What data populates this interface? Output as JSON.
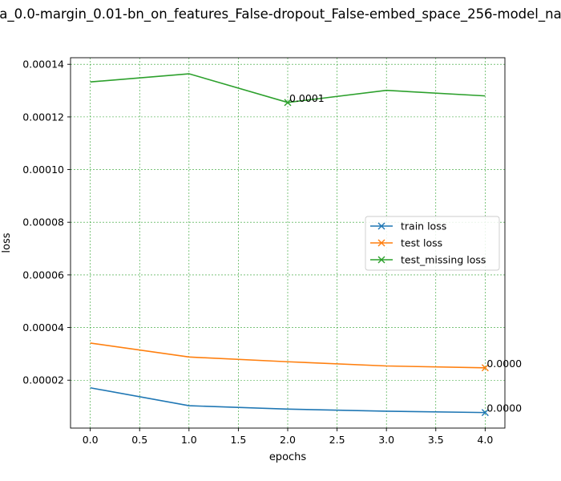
{
  "chart_data": {
    "type": "line",
    "title": "a_0.0-margin_0.01-bn_on_features_False-dropout_False-embed_space_256-model_na",
    "xlabel": "epochs",
    "ylabel": "loss",
    "xlim": [
      -0.2,
      4.2
    ],
    "ylim": [
      1.8e-06,
      0.0001425
    ],
    "x_ticks": [
      0.0,
      0.5,
      1.0,
      1.5,
      2.0,
      2.5,
      3.0,
      3.5,
      4.0
    ],
    "x_tick_labels": [
      "0.0",
      "0.5",
      "1.0",
      "1.5",
      "2.0",
      "2.5",
      "3.0",
      "3.5",
      "4.0"
    ],
    "y_ticks": [
      2e-05,
      4e-05,
      6e-05,
      8e-05,
      0.0001,
      0.00012,
      0.00014
    ],
    "y_tick_labels": [
      "0.00002",
      "0.00004",
      "0.00006",
      "0.00008",
      "0.00010",
      "0.00012",
      "0.00014"
    ],
    "grid": true,
    "grid_color": "#2ca02c",
    "legend_position": "center-right",
    "x": [
      0,
      1,
      2,
      3,
      4
    ],
    "series": [
      {
        "name": "train loss",
        "color": "#1f77b4",
        "values": [
          1.71e-05,
          1.03e-05,
          9e-06,
          8.2e-06,
          7.7e-06
        ],
        "marker_index": 4,
        "annotation": "0.0000"
      },
      {
        "name": "test loss",
        "color": "#ff7f0e",
        "values": [
          3.41e-05,
          2.88e-05,
          2.7e-05,
          2.54e-05,
          2.47e-05
        ],
        "marker_index": 4,
        "annotation": "0.0000"
      },
      {
        "name": "test_missing loss",
        "color": "#2ca02c",
        "values": [
          0.0001333,
          0.0001364,
          0.0001255,
          0.0001301,
          0.000128
        ],
        "marker_index": 2,
        "annotation": "0.0001"
      }
    ]
  }
}
